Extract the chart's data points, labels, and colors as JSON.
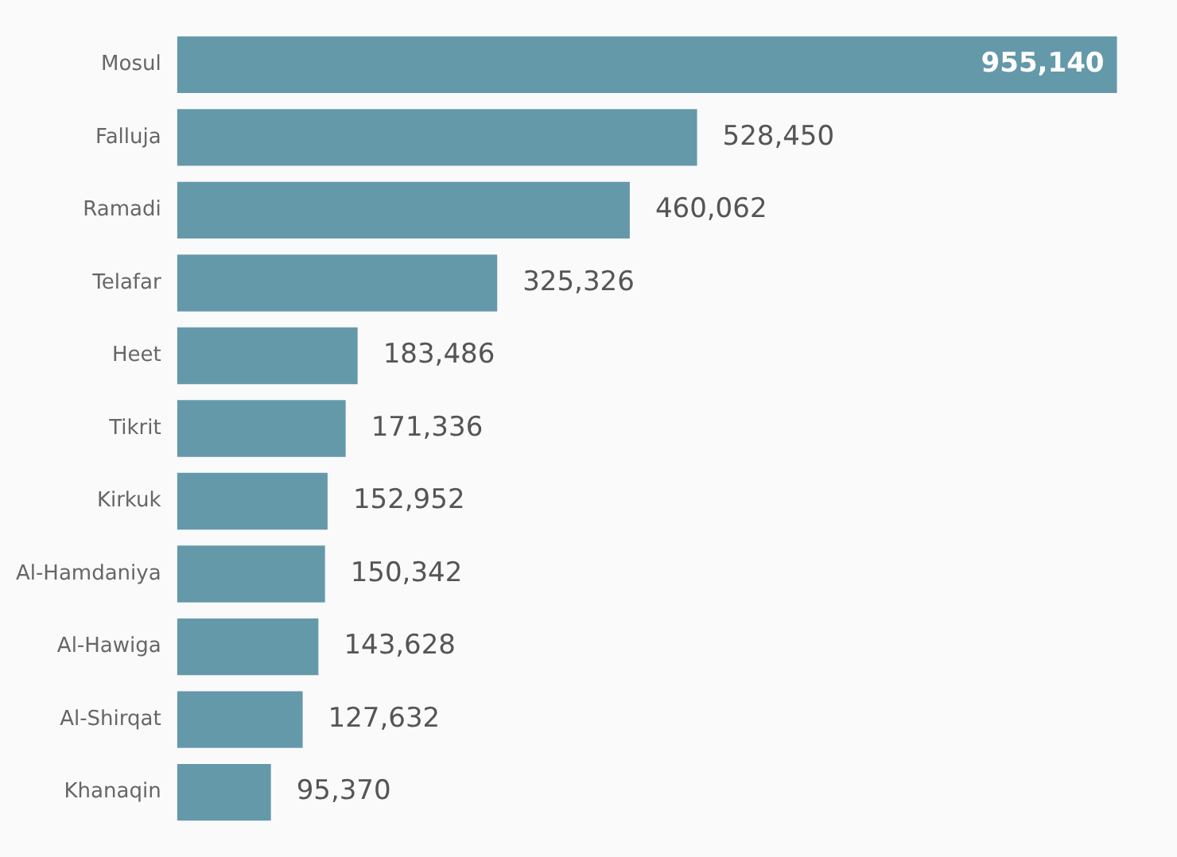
{
  "chart_data": {
    "type": "bar",
    "orientation": "horizontal",
    "categories": [
      "Mosul",
      "Falluja",
      "Ramadi",
      "Telafar",
      "Heet",
      "Tikrit",
      "Kirkuk",
      "Al-Hamdaniya",
      "Al-Hawiga",
      "Al-Shirqat",
      "Khanaqin"
    ],
    "values": [
      955140,
      528450,
      460062,
      325326,
      183486,
      171336,
      152952,
      150342,
      143628,
      127632,
      95370
    ],
    "value_labels": [
      "955,140",
      "528,450",
      "460,062",
      "325,326",
      "183,486",
      "171,336",
      "152,952",
      "150,342",
      "143,628",
      "127,632",
      "95,370"
    ],
    "color": "#6499aa",
    "grid": false,
    "legend": false
  }
}
